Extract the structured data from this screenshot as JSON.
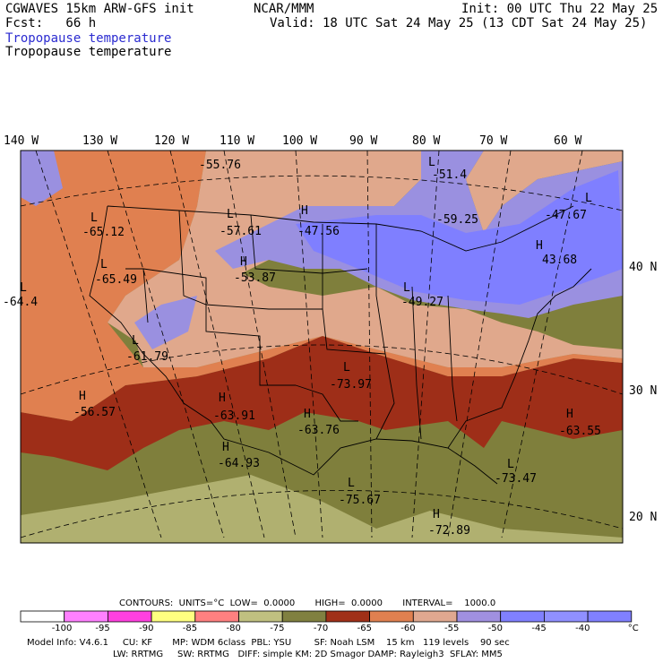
{
  "header": {
    "model": "CGWAVES 15km ARW-GFS init",
    "org": "NCAR/MMM",
    "init": "Init: 00 UTC Thu 22 May 25",
    "fcst": "Fcst:   66 h",
    "valid": "Valid: 18 UTC Sat 24 May 25 (13 CDT Sat 24 May 25)",
    "field_blue": "Tropopause temperature",
    "field_black": "Tropopause temperature"
  },
  "lon_labels": [
    "140 W",
    "130 W",
    "120 W",
    "110 W",
    "100 W",
    "90 W",
    "80 W",
    "70 W",
    "60 W"
  ],
  "lat_labels": [
    "40 N",
    "30 N",
    "20 N"
  ],
  "map_labels": [
    {
      "t": "-55.76"
    },
    {
      "t": "L"
    },
    {
      "t": "-51.4"
    },
    {
      "t": "-59.25"
    },
    {
      "t": "L"
    },
    {
      "t": "-65.12"
    },
    {
      "t": "L"
    },
    {
      "t": "-57.61"
    },
    {
      "t": "H"
    },
    {
      "t": "-47.56"
    },
    {
      "t": "L"
    },
    {
      "t": "-47.67"
    },
    {
      "t": "H"
    },
    {
      "t": "43.68"
    },
    {
      "t": "L"
    },
    {
      "t": "-65.49"
    },
    {
      "t": "H"
    },
    {
      "t": "-53.87"
    },
    {
      "t": "L"
    },
    {
      "t": "-64.4"
    },
    {
      "t": "L"
    },
    {
      "t": "-49.27"
    },
    {
      "t": "L"
    },
    {
      "t": "-61.79"
    },
    {
      "t": "L"
    },
    {
      "t": "-73.97"
    },
    {
      "t": "H"
    },
    {
      "t": "-56.57"
    },
    {
      "t": "H"
    },
    {
      "t": "-63.91"
    },
    {
      "t": "H"
    },
    {
      "t": "-63.76"
    },
    {
      "t": "H"
    },
    {
      "t": "-63.55"
    },
    {
      "t": "H"
    },
    {
      "t": "-64.93"
    },
    {
      "t": "L"
    },
    {
      "t": "-73.47"
    },
    {
      "t": "L"
    },
    {
      "t": "-75.67"
    },
    {
      "t": "H"
    },
    {
      "t": "-72.89"
    }
  ],
  "legend": {
    "contours_line": "CONTOURS:  UNITS=°C  LOW=  0.0000       HIGH=  0.0000       INTERVAL=    1000.0",
    "ticks": [
      "-100",
      "-95",
      "-90",
      "-85",
      "-80",
      "-75",
      "-70",
      "-65",
      "-60",
      "-55",
      "-50",
      "-45",
      "-40",
      "°C"
    ],
    "colors": [
      "#ffffff",
      "#ff80ff",
      "#ff40e0",
      "#ffff80",
      "#ff8080",
      "#c0c080",
      "#808040",
      "#a03018",
      "#e08050",
      "#e0a890",
      "#a090e0",
      "#8080ff",
      "#9090ff",
      "#8080ff"
    ]
  },
  "footer": {
    "line1": "Model Info: V4.6.1     CU: KF       MP: WDM 6class  PBL: YSU        SF: Noah LSM    15 km   119 levels    90 sec",
    "line2": "LW: RRTMG     SW: RRTMG   DIFF: simple KM: 2D Smagor DAMP: Rayleigh3  SFLAY: MM5"
  }
}
